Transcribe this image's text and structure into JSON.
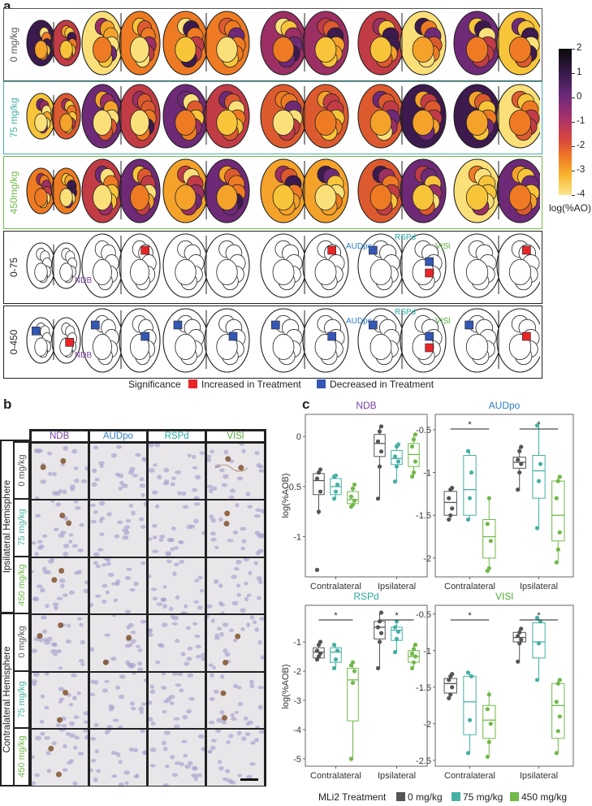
{
  "panel_a": {
    "label": "a",
    "rows": [
      {
        "label": "0 mg/kg",
        "color": "#555555",
        "border": "#555555"
      },
      {
        "label": "75 mg/kg",
        "color": "#45b0a3",
        "border": "#45b0a3"
      },
      {
        "label": "450mg/kg",
        "color": "#71b84a",
        "border": "#71b84a"
      },
      {
        "label": "0-75",
        "color": "#222222",
        "border": "#222222"
      },
      {
        "label": "0-450",
        "color": "#222222",
        "border": "#222222"
      }
    ],
    "region_labels": {
      "ndb": "NDB",
      "audpo": "AUDpo",
      "rspd": "RSPd",
      "visl": "VISl"
    },
    "colorbar": {
      "ticks": [
        "2",
        "1",
        "0",
        "-1",
        "-2",
        "-3",
        "-4"
      ],
      "title": "log(%AO)"
    },
    "significance": {
      "title": "Significance",
      "increased": "Increased in Treatment",
      "decreased": "Decreased in Treatment",
      "increased_color": "#e8262a",
      "decreased_color": "#3557b4"
    }
  },
  "panel_b": {
    "label": "b",
    "columns": [
      "NDB",
      "AUDpo",
      "RSPd",
      "VISl"
    ],
    "column_colors": [
      "#7a3fa0",
      "#2e7ec2",
      "#27aaa0",
      "#55a83a"
    ],
    "hemispheres": [
      "Ipsilateral Hemisphere",
      "Contralateral Hemisphere"
    ],
    "doses": [
      "0 mg/kg",
      "75 mg/kg",
      "450 mg/kg"
    ],
    "dose_colors": [
      "#555555",
      "#45b0a3",
      "#71b84a"
    ]
  },
  "panel_c": {
    "label": "c",
    "legend_title": "MLi2 Treatment",
    "legend": [
      "0 mg/kg",
      "75 mg/kg",
      "450 mg/kg"
    ],
    "colors": [
      "#555555",
      "#45b0a3",
      "#71b84a"
    ],
    "ylabel": "log(%AOB)",
    "groups": [
      "Contralateral",
      "Ipsilateral"
    ],
    "sig_mark": "*"
  },
  "chart_data": [
    {
      "type": "box",
      "title": "NDB",
      "title_color": "#7a3fa0",
      "categories": [
        "Contralateral",
        "Ipsilateral"
      ],
      "ylim": [
        -1.4,
        0.22
      ],
      "yticks": [
        0.0,
        -0.5,
        -1.0
      ],
      "series": [
        {
          "name": "0 mg/kg",
          "boxes": [
            [
              -0.78,
              -0.58,
              -0.44,
              -0.37,
              -0.32
            ],
            [
              -0.62,
              -0.2,
              -0.07,
              0.02,
              0.1
            ]
          ],
          "points": [
            [
              -1.33,
              -0.75,
              -0.55,
              -0.42,
              -0.36,
              -0.33
            ],
            [
              -0.62,
              -0.3,
              -0.15,
              -0.05,
              0.05,
              0.1
            ]
          ]
        },
        {
          "name": "75 mg/kg",
          "boxes": [
            [
              -0.62,
              -0.58,
              -0.5,
              -0.42,
              -0.38
            ],
            [
              -0.45,
              -0.28,
              -0.22,
              -0.14,
              -0.08
            ]
          ],
          "points": [
            [
              -0.62,
              -0.55,
              -0.48,
              -0.4,
              -0.39
            ],
            [
              -0.45,
              -0.3,
              -0.25,
              -0.2,
              -0.1,
              -0.08
            ]
          ]
        },
        {
          "name": "450 mg/kg",
          "boxes": [
            [
              -0.7,
              -0.67,
              -0.63,
              -0.55,
              -0.5
            ],
            [
              -0.4,
              -0.3,
              -0.18,
              -0.07,
              0.02
            ]
          ],
          "points": [
            [
              -0.7,
              -0.68,
              -0.64,
              -0.6,
              -0.52,
              -0.48
            ],
            [
              -0.4,
              -0.36,
              -0.25,
              -0.1,
              -0.03,
              0.02
            ]
          ]
        }
      ],
      "sig": []
    },
    {
      "type": "box",
      "title": "AUDpo",
      "title_color": "#2e7ec2",
      "categories": [
        "Contralateral",
        "Ipsilateral"
      ],
      "ylim": [
        -2.22,
        -0.32
      ],
      "yticks": [
        -0.5,
        -1.0,
        -1.5,
        -2.0
      ],
      "series": [
        {
          "name": "0 mg/kg",
          "boxes": [
            [
              -1.55,
              -1.5,
              -1.35,
              -1.22,
              -1.18
            ],
            [
              -1.2,
              -0.95,
              -0.88,
              -0.82,
              -0.7
            ]
          ],
          "points": [
            [
              -1.55,
              -1.5,
              -1.42,
              -1.3,
              -1.2,
              -1.18
            ],
            [
              -1.2,
              -1.0,
              -0.9,
              -0.85,
              -0.75,
              -0.7
            ]
          ]
        },
        {
          "name": "75 mg/kg",
          "boxes": [
            [
              -1.55,
              -1.5,
              -1.2,
              -0.8,
              -0.75
            ],
            [
              -1.65,
              -1.3,
              -0.98,
              -0.8,
              -0.45
            ]
          ],
          "points": [
            [
              -1.55,
              -1.3,
              -1.0,
              -0.75
            ],
            [
              -1.65,
              -1.1,
              -0.9,
              -0.45
            ]
          ]
        },
        {
          "name": "450 mg/kg",
          "boxes": [
            [
              -2.15,
              -2.0,
              -1.75,
              -1.55,
              -1.3
            ],
            [
              -2.05,
              -1.8,
              -1.5,
              -1.1,
              -1.05
            ]
          ],
          "points": [
            [
              -2.15,
              -2.12,
              -1.8,
              -1.6,
              -1.3
            ],
            [
              -2.05,
              -1.9,
              -1.7,
              -1.3,
              -1.1,
              -1.05
            ]
          ]
        }
      ],
      "sig": [
        {
          "group": 0,
          "from": 0,
          "to": 2
        },
        {
          "group": 1,
          "from": 0,
          "to": 2
        }
      ]
    },
    {
      "type": "box",
      "title": "RSPd",
      "title_color": "#27aaa0",
      "categories": [
        "Contralateral",
        "Ipsilateral"
      ],
      "ylim": [
        -5.25,
        0.25
      ],
      "yticks": [
        -1,
        -2,
        -3,
        -4,
        -5
      ],
      "series": [
        {
          "name": "0 mg/kg",
          "boxes": [
            [
              -1.6,
              -1.55,
              -1.35,
              -1.2,
              -1.0
            ],
            [
              -1.9,
              -0.9,
              -0.5,
              -0.3,
              0.0
            ]
          ],
          "points": [
            [
              -1.6,
              -1.5,
              -1.4,
              -1.3,
              -1.1,
              -1.0
            ],
            [
              -1.9,
              -1.0,
              -0.7,
              -0.5,
              -0.3,
              0.0
            ]
          ]
        },
        {
          "name": "75 mg/kg",
          "boxes": [
            [
              -1.9,
              -1.7,
              -1.35,
              -1.2,
              -1.1
            ],
            [
              -1.35,
              -0.95,
              -0.6,
              -0.5,
              -0.3
            ]
          ],
          "points": [
            [
              -1.9,
              -1.6,
              -1.3,
              -1.1
            ],
            [
              -1.35,
              -0.9,
              -0.65,
              -0.5,
              -0.3
            ]
          ]
        },
        {
          "name": "450 mg/kg",
          "boxes": [
            [
              -5.0,
              -3.7,
              -2.3,
              -1.9,
              -1.7
            ],
            [
              -1.9,
              -1.7,
              -1.5,
              -1.3,
              -1.1
            ]
          ],
          "points": [
            [
              -5.0,
              -2.4,
              -2.0,
              -1.8,
              -1.7
            ],
            [
              -1.9,
              -1.7,
              -1.5,
              -1.4,
              -1.25,
              -1.1
            ]
          ]
        }
      ],
      "sig": [
        {
          "group": 0,
          "from": 0,
          "to": 2
        },
        {
          "group": 1,
          "from": 0,
          "to": 2
        }
      ]
    },
    {
      "type": "box",
      "title": "VISl",
      "title_color": "#55a83a",
      "categories": [
        "Contralateral",
        "Ipsilateral"
      ],
      "ylim": [
        -2.58,
        -0.38
      ],
      "yticks": [
        -0.5,
        -1.0,
        -1.5,
        -2.0,
        -2.5
      ],
      "series": [
        {
          "name": "0 mg/kg",
          "boxes": [
            [
              -1.65,
              -1.58,
              -1.45,
              -1.38,
              -1.32
            ],
            [
              -1.15,
              -0.88,
              -0.82,
              -0.75,
              -0.7
            ]
          ],
          "points": [
            [
              -1.65,
              -1.6,
              -1.5,
              -1.4,
              -1.35,
              -1.32
            ],
            [
              -1.15,
              -0.9,
              -0.85,
              -0.8,
              -0.75,
              -0.7
            ]
          ]
        },
        {
          "name": "75 mg/kg",
          "boxes": [
            [
              -2.4,
              -2.15,
              -1.7,
              -1.35,
              -1.3
            ],
            [
              -1.4,
              -1.1,
              -0.88,
              -0.62,
              -0.55
            ]
          ],
          "points": [
            [
              -2.4,
              -1.95,
              -1.35,
              -1.3
            ],
            [
              -1.4,
              -0.9,
              -0.6,
              -0.55
            ]
          ]
        },
        {
          "name": "450 mg/kg",
          "boxes": [
            [
              -2.45,
              -2.2,
              -1.95,
              -1.75,
              -1.55
            ],
            [
              -2.4,
              -2.2,
              -1.75,
              -1.45,
              -1.4
            ]
          ],
          "points": [
            [
              -2.45,
              -2.25,
              -2.0,
              -1.8,
              -1.6
            ],
            [
              -2.4,
              -2.1,
              -1.9,
              -1.7,
              -1.45,
              -1.4
            ]
          ]
        }
      ],
      "sig": [
        {
          "group": 0,
          "from": 0,
          "to": 2
        },
        {
          "group": 1,
          "from": 0,
          "to": 2
        }
      ]
    }
  ]
}
